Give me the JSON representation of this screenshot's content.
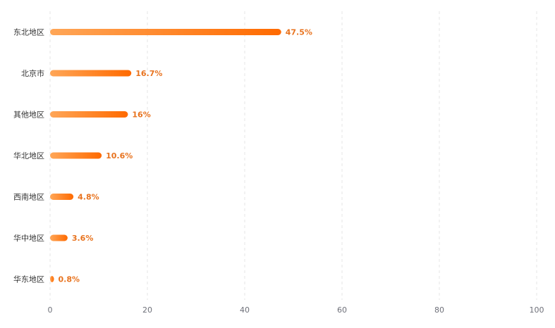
{
  "chart_data": {
    "type": "bar",
    "orientation": "horizontal",
    "categories": [
      "东北地区",
      "北京市",
      "其他地区",
      "华北地区",
      "西南地区",
      "华中地区",
      "华东地区"
    ],
    "values": [
      47.5,
      16.7,
      16,
      10.6,
      4.8,
      3.6,
      0.8
    ],
    "value_labels": [
      "47.5%",
      "16.7%",
      "16%",
      "10.6%",
      "4.8%",
      "3.6%",
      "0.8%"
    ],
    "x_ticks": [
      "0",
      "20",
      "40",
      "60",
      "80",
      "100"
    ],
    "xlim": [
      0,
      100
    ],
    "grid": true,
    "title": "",
    "xlabel": "",
    "ylabel": ""
  },
  "colors": {
    "bar_start": "#ffa657",
    "bar_end": "#ff6a00",
    "value_text": "#e8731f",
    "grid": "#e6e6e6"
  }
}
